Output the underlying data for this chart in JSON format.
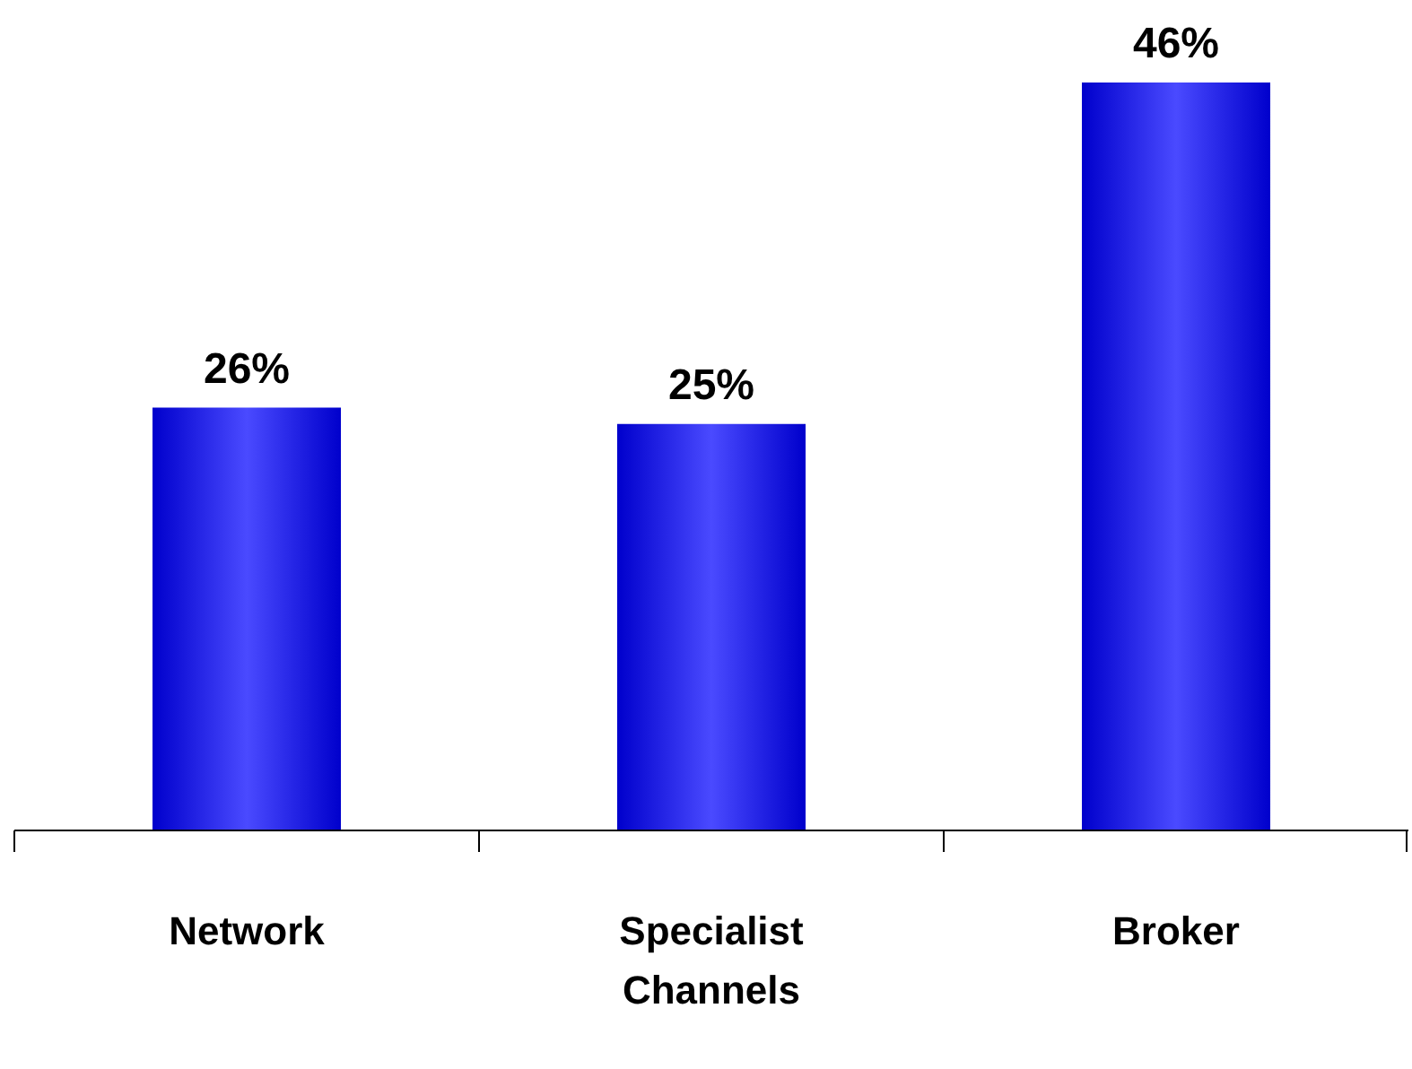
{
  "chart_data": {
    "type": "bar",
    "categories": [
      "Network",
      "Specialist Channels",
      "Broker"
    ],
    "values": [
      26,
      25,
      46
    ],
    "value_labels": [
      "26%",
      "25%",
      "46%"
    ],
    "color": "#0000cc"
  }
}
